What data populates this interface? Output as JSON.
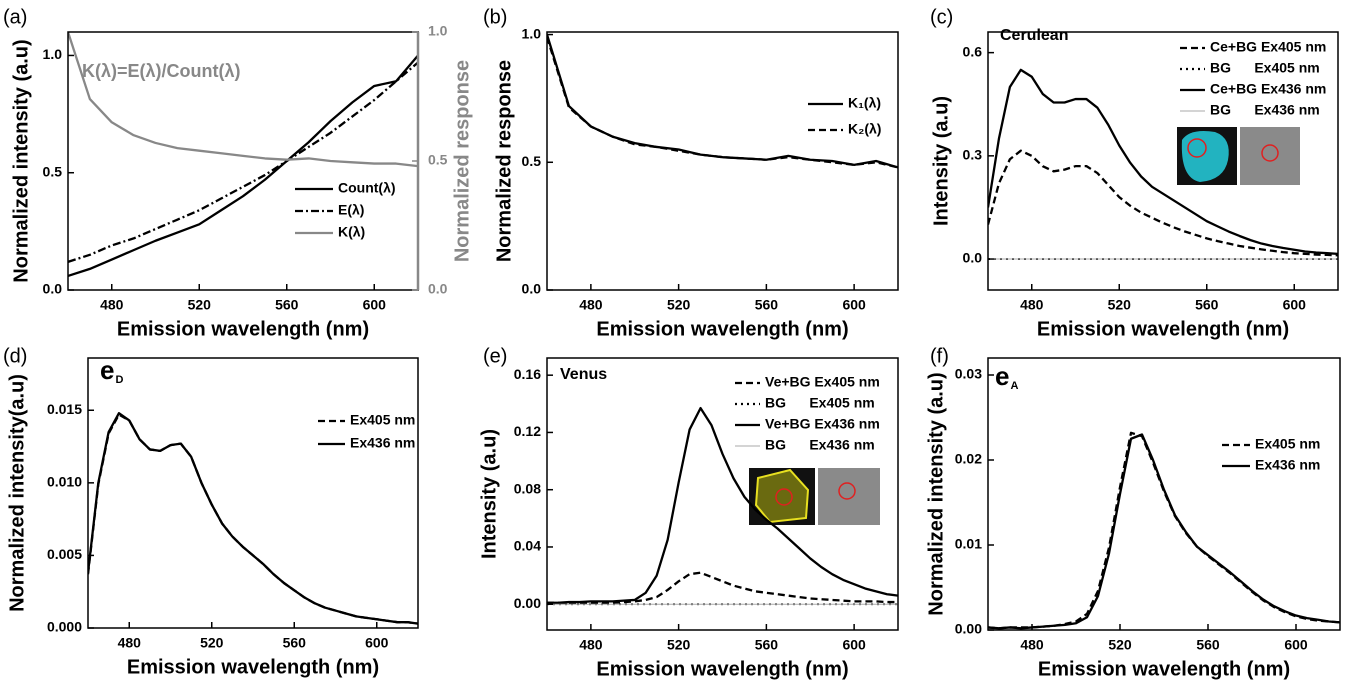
{
  "chart_data": [
    {
      "type": "line",
      "panel_label": "(a)",
      "annotation": "K(λ)=E(λ)/Count(λ)",
      "xlabel": "Emission wavelength (nm)",
      "ylabel": "Normalized intensity (a.u)",
      "y2label": "Normalized response",
      "x": [
        460,
        470,
        480,
        490,
        500,
        510,
        520,
        530,
        540,
        550,
        560,
        570,
        580,
        590,
        600,
        610,
        620
      ],
      "series": [
        {
          "name": "Count(λ)",
          "color": "#000000",
          "style": "solid",
          "values": [
            0.06,
            0.09,
            0.13,
            0.17,
            0.21,
            0.245,
            0.28,
            0.34,
            0.4,
            0.47,
            0.55,
            0.63,
            0.72,
            0.8,
            0.87,
            0.89,
            1.0
          ]
        },
        {
          "name": "E(λ)",
          "color": "#000000",
          "style": "dashdot",
          "values": [
            0.12,
            0.15,
            0.19,
            0.22,
            0.26,
            0.3,
            0.34,
            0.39,
            0.44,
            0.49,
            0.55,
            0.61,
            0.67,
            0.74,
            0.81,
            0.89,
            0.97
          ]
        },
        {
          "name": "K(λ)",
          "color": "#888888",
          "style": "solid",
          "axis": "y2",
          "values": [
            1.0,
            0.74,
            0.65,
            0.6,
            0.57,
            0.55,
            0.54,
            0.53,
            0.52,
            0.51,
            0.505,
            0.51,
            0.5,
            0.495,
            0.49,
            0.49,
            0.48
          ]
        }
      ],
      "xlim": [
        460,
        620
      ],
      "xticks": [
        480,
        520,
        560,
        600
      ],
      "ylim": [
        0,
        1.1
      ],
      "yticks": [
        {
          "value": 0,
          "label": "0.0"
        },
        0.5,
        {
          "value": 1,
          "label": "1.0"
        }
      ],
      "y2lim": [
        0,
        1.0
      ],
      "y2ticks": [
        {
          "value": 0,
          "label": "0.0"
        },
        0.5,
        {
          "value": 1,
          "label": "1.0"
        }
      ],
      "legend": "lower right"
    },
    {
      "type": "line",
      "panel_label": "(b)",
      "xlabel": "Emission wavelength (nm)",
      "ylabel": "Normalized response",
      "x": [
        460,
        470,
        480,
        490,
        500,
        510,
        520,
        530,
        540,
        550,
        560,
        570,
        580,
        590,
        600,
        610,
        620
      ],
      "series": [
        {
          "name": "K₁(λ)",
          "color": "#000000",
          "style": "solid",
          "values": [
            1.0,
            0.72,
            0.64,
            0.6,
            0.575,
            0.56,
            0.55,
            0.53,
            0.52,
            0.515,
            0.51,
            0.525,
            0.51,
            0.505,
            0.49,
            0.505,
            0.48
          ]
        },
        {
          "name": "K₂(λ)",
          "color": "#000000",
          "style": "dashed",
          "values": [
            0.99,
            0.715,
            0.64,
            0.6,
            0.57,
            0.56,
            0.545,
            0.53,
            0.52,
            0.515,
            0.51,
            0.52,
            0.51,
            0.5,
            0.49,
            0.5,
            0.48
          ]
        }
      ],
      "xlim": [
        460,
        620
      ],
      "xticks": [
        480,
        520,
        560,
        600
      ],
      "ylim": [
        0,
        1.01
      ],
      "yticks": [
        {
          "value": 0,
          "label": "0.0"
        },
        0.5,
        {
          "value": 1,
          "label": "1.0"
        }
      ],
      "legend": "upper right"
    },
    {
      "type": "line",
      "panel_label": "(c)",
      "annotation": "Cerulean",
      "xlabel": "Emission wavelength (nm)",
      "ylabel": "Intensity (a.u)",
      "x": [
        460,
        465,
        470,
        475,
        480,
        485,
        490,
        495,
        500,
        505,
        510,
        515,
        520,
        525,
        530,
        535,
        540,
        545,
        550,
        555,
        560,
        565,
        570,
        575,
        580,
        585,
        590,
        595,
        600,
        605,
        610,
        615,
        620
      ],
      "series": [
        {
          "name": "Ce+BG Ex405 nm",
          "color": "#000000",
          "style": "dashed",
          "values": [
            0.1,
            0.22,
            0.29,
            0.315,
            0.3,
            0.27,
            0.255,
            0.26,
            0.27,
            0.27,
            0.25,
            0.215,
            0.18,
            0.155,
            0.135,
            0.12,
            0.105,
            0.092,
            0.08,
            0.07,
            0.06,
            0.052,
            0.045,
            0.038,
            0.033,
            0.028,
            0.024,
            0.02,
            0.017,
            0.015,
            0.013,
            0.012,
            0.011
          ]
        },
        {
          "name": "BG      Ex405 nm",
          "color": "#000000",
          "style": "dotted",
          "values": [
            0,
            0,
            0,
            0,
            0,
            0,
            0,
            0,
            0,
            0,
            0,
            0,
            0,
            0,
            0,
            0,
            0,
            0,
            0,
            0,
            0,
            0,
            0,
            0,
            0,
            0,
            0,
            0,
            0,
            0,
            0,
            0,
            0
          ]
        },
        {
          "name": "Ce+BG Ex436 nm",
          "color": "#000000",
          "style": "solid",
          "values": [
            0.15,
            0.35,
            0.5,
            0.55,
            0.53,
            0.48,
            0.455,
            0.455,
            0.465,
            0.465,
            0.44,
            0.39,
            0.33,
            0.28,
            0.24,
            0.21,
            0.19,
            0.17,
            0.15,
            0.13,
            0.11,
            0.095,
            0.08,
            0.067,
            0.055,
            0.045,
            0.038,
            0.032,
            0.027,
            0.022,
            0.019,
            0.017,
            0.015
          ]
        },
        {
          "name": "BG      Ex436 nm",
          "color": "#aaaaaa",
          "style": "thin",
          "values": [
            0,
            0,
            0,
            0,
            0,
            0,
            0,
            0,
            0,
            0,
            0,
            0,
            0,
            0,
            0,
            0,
            0,
            0,
            0,
            0,
            0,
            0,
            0,
            0,
            0,
            0,
            0,
            0,
            0,
            0,
            0,
            0,
            0
          ]
        }
      ],
      "xlim": [
        460,
        620
      ],
      "xticks": [
        480,
        520,
        560,
        600
      ],
      "ylim": [
        -0.09,
        0.66
      ],
      "yticks": [
        {
          "value": 0,
          "label": "0.0"
        },
        0.3,
        0.6
      ],
      "legend": "upper right"
    },
    {
      "type": "line",
      "panel_label": "(d)",
      "annotation": "e",
      "annotation_sub": "D",
      "xlabel": "Emission wavelength (nm)",
      "ylabel": "Normalized intensity(a.u)",
      "x": [
        460,
        465,
        470,
        475,
        480,
        485,
        490,
        495,
        500,
        505,
        510,
        515,
        520,
        525,
        530,
        535,
        540,
        545,
        550,
        555,
        560,
        565,
        570,
        575,
        580,
        585,
        590,
        595,
        600,
        605,
        610,
        615,
        620
      ],
      "series": [
        {
          "name": "Ex405 nm",
          "color": "#000000",
          "style": "dashed",
          "values": [
            0.0037,
            0.0099,
            0.0134,
            0.0147,
            0.0143,
            0.013,
            0.0123,
            0.0122,
            0.0126,
            0.0127,
            0.0118,
            0.01,
            0.0085,
            0.0072,
            0.0063,
            0.0056,
            0.005,
            0.0044,
            0.0037,
            0.0031,
            0.0026,
            0.0021,
            0.0017,
            0.0014,
            0.0012,
            0.001,
            0.0008,
            0.0007,
            0.0006,
            0.0005,
            0.0004,
            0.0004,
            0.0003
          ]
        },
        {
          "name": "Ex436 nm",
          "color": "#000000",
          "style": "solid",
          "values": [
            0.0038,
            0.01,
            0.0135,
            0.0148,
            0.0143,
            0.013,
            0.0123,
            0.0122,
            0.0126,
            0.0127,
            0.0118,
            0.01,
            0.0085,
            0.0072,
            0.0063,
            0.0056,
            0.005,
            0.0044,
            0.0037,
            0.0031,
            0.0026,
            0.0021,
            0.0017,
            0.0014,
            0.0012,
            0.001,
            0.0008,
            0.0007,
            0.0006,
            0.0005,
            0.0004,
            0.0004,
            0.0003
          ]
        }
      ],
      "xlim": [
        460,
        620
      ],
      "xticks": [
        480,
        520,
        560,
        600
      ],
      "ylim": [
        0,
        0.0186
      ],
      "yticks": [
        {
          "value": 0,
          "label": "0.000"
        },
        {
          "value": 0.005,
          "label": "0.005"
        },
        {
          "value": 0.01,
          "label": "0.010"
        },
        {
          "value": 0.015,
          "label": "0.015"
        }
      ],
      "legend": "upper right"
    },
    {
      "type": "line",
      "panel_label": "(e)",
      "annotation": "Venus",
      "xlabel": "Emission wavelength (nm)",
      "ylabel": "Intensity (a.u)",
      "x": [
        460,
        465,
        470,
        475,
        480,
        485,
        490,
        495,
        500,
        505,
        510,
        515,
        520,
        525,
        530,
        535,
        540,
        545,
        550,
        555,
        560,
        565,
        570,
        575,
        580,
        585,
        590,
        595,
        600,
        605,
        610,
        615,
        620
      ],
      "series": [
        {
          "name": "Ve+BG Ex405 nm",
          "color": "#000000",
          "style": "dashed",
          "values": [
            0.001,
            0.001,
            0.001,
            0.001,
            0.001,
            0.001,
            0.001,
            0.0015,
            0.002,
            0.003,
            0.005,
            0.01,
            0.016,
            0.021,
            0.022,
            0.019,
            0.016,
            0.013,
            0.011,
            0.009,
            0.008,
            0.007,
            0.006,
            0.005,
            0.004,
            0.0035,
            0.003,
            0.0025,
            0.002,
            0.002,
            0.002,
            0.0015,
            0.0015
          ]
        },
        {
          "name": "BG      Ex405 nm",
          "color": "#000000",
          "style": "dotted",
          "values": [
            0,
            0,
            0,
            0,
            0,
            0,
            0,
            0,
            0,
            0,
            0,
            0,
            0,
            0,
            0,
            0,
            0,
            0,
            0,
            0,
            0,
            0,
            0,
            0,
            0,
            0,
            0,
            0,
            0,
            0,
            0,
            0,
            0
          ]
        },
        {
          "name": "Ve+BG Ex436 nm",
          "color": "#000000",
          "style": "solid",
          "values": [
            0.001,
            0.001,
            0.0015,
            0.0015,
            0.002,
            0.002,
            0.002,
            0.0025,
            0.003,
            0.008,
            0.02,
            0.045,
            0.085,
            0.122,
            0.137,
            0.125,
            0.105,
            0.088,
            0.075,
            0.066,
            0.059,
            0.053,
            0.046,
            0.039,
            0.032,
            0.026,
            0.021,
            0.017,
            0.014,
            0.011,
            0.009,
            0.007,
            0.006
          ]
        },
        {
          "name": "BG      Ex436 nm",
          "color": "#aaaaaa",
          "style": "thin",
          "values": [
            0,
            0,
            0,
            0,
            0,
            0,
            0,
            0,
            0,
            0,
            0,
            0,
            0,
            0,
            0,
            0,
            0,
            0,
            0,
            0,
            0,
            0,
            0,
            0,
            0,
            0,
            0,
            0,
            0,
            0,
            0,
            0,
            0
          ]
        }
      ],
      "xlim": [
        460,
        620
      ],
      "xticks": [
        480,
        520,
        560,
        600
      ],
      "ylim": [
        -0.018,
        0.172
      ],
      "yticks": [
        {
          "value": 0,
          "label": "0.00"
        },
        0.04,
        0.08,
        0.12,
        0.16
      ],
      "legend": "upper right"
    },
    {
      "type": "line",
      "panel_label": "(f)",
      "annotation": "e",
      "annotation_sub": "A",
      "xlabel": "Emission wavelength (nm)",
      "ylabel": "Normalized intensity (a.u)",
      "x": [
        460,
        465,
        470,
        475,
        480,
        485,
        490,
        495,
        500,
        505,
        510,
        515,
        520,
        525,
        530,
        535,
        540,
        545,
        550,
        555,
        560,
        565,
        570,
        575,
        580,
        585,
        590,
        595,
        600,
        605,
        610,
        615,
        620
      ],
      "series": [
        {
          "name": "Ex405 nm",
          "color": "#000000",
          "style": "dashed",
          "values": [
            0.0003,
            0.0002,
            0.0003,
            0.0003,
            0.0003,
            0.0004,
            0.0005,
            0.0007,
            0.001,
            0.0019,
            0.0046,
            0.0097,
            0.0168,
            0.0232,
            0.0228,
            0.0197,
            0.0163,
            0.0134,
            0.0114,
            0.0098,
            0.0087,
            0.0077,
            0.0067,
            0.0056,
            0.0045,
            0.0035,
            0.0027,
            0.0021,
            0.0016,
            0.0013,
            0.0011,
            0.001,
            0.0009
          ]
        },
        {
          "name": "Ex436 nm",
          "color": "#000000",
          "style": "solid",
          "values": [
            0.0003,
            0.0002,
            0.0003,
            0.0002,
            0.0003,
            0.0004,
            0.0005,
            0.0006,
            0.0008,
            0.0015,
            0.004,
            0.009,
            0.016,
            0.0225,
            0.023,
            0.02,
            0.0165,
            0.0135,
            0.0115,
            0.0098,
            0.0088,
            0.0078,
            0.0068,
            0.0057,
            0.0046,
            0.0036,
            0.0028,
            0.0022,
            0.0017,
            0.0014,
            0.0012,
            0.001,
            0.0009
          ]
        }
      ],
      "xlim": [
        460,
        620
      ],
      "xticks": [
        480,
        520,
        560,
        600
      ],
      "ylim": [
        0,
        0.032
      ],
      "yticks": [
        {
          "value": 0,
          "label": "0.00"
        },
        0.01,
        0.02,
        0.03
      ],
      "legend": "upper right"
    }
  ]
}
